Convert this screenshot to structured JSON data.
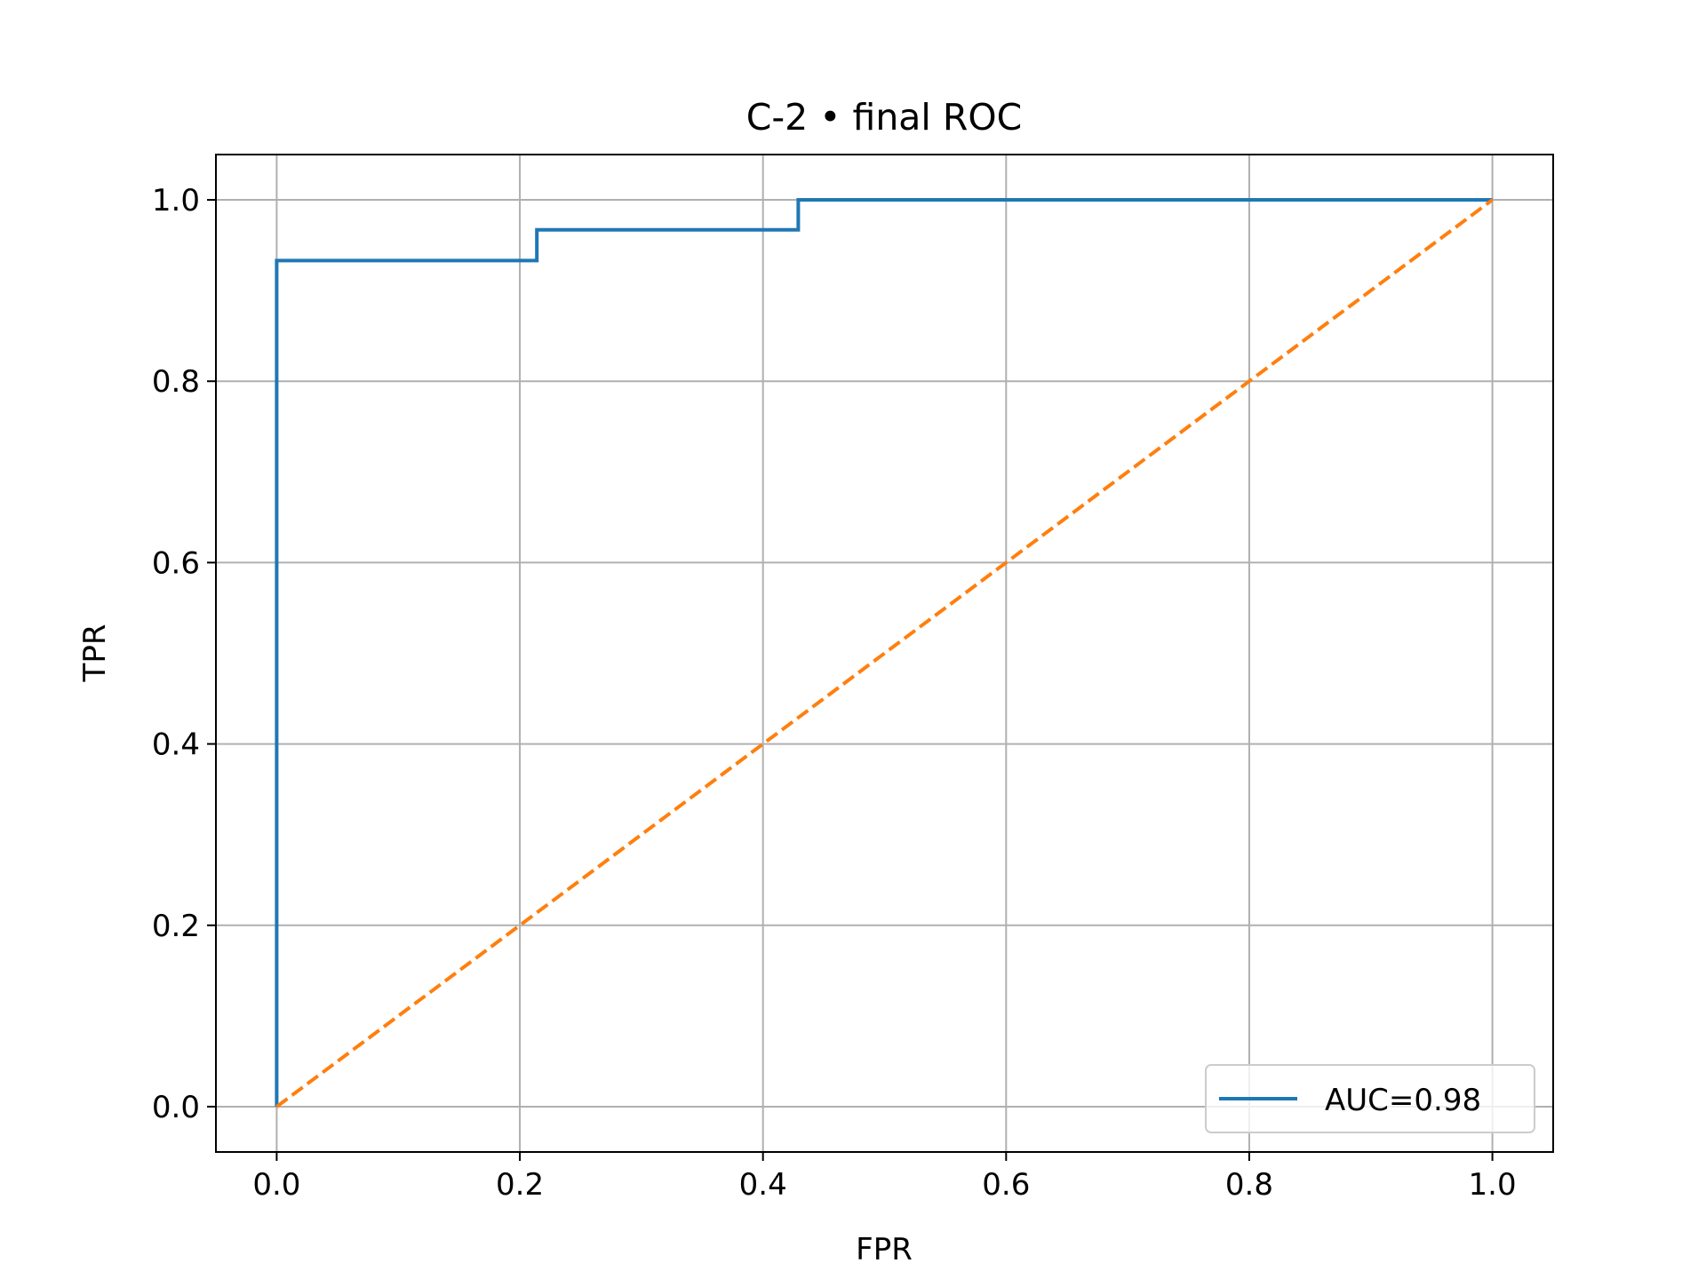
{
  "chart_data": {
    "type": "line",
    "title": "C-2 • final ROC",
    "xlabel": "FPR",
    "ylabel": "TPR",
    "xlim": [
      -0.05,
      1.05
    ],
    "ylim": [
      -0.05,
      1.05
    ],
    "xticks": [
      0.0,
      0.2,
      0.4,
      0.6,
      0.8,
      1.0
    ],
    "yticks": [
      0.0,
      0.2,
      0.4,
      0.6,
      0.8,
      1.0
    ],
    "xtick_labels": [
      "0.0",
      "0.2",
      "0.4",
      "0.6",
      "0.8",
      "1.0"
    ],
    "ytick_labels": [
      "0.0",
      "0.2",
      "0.4",
      "0.6",
      "0.8",
      "1.0"
    ],
    "grid": true,
    "legend_position": "lower-right",
    "series": [
      {
        "name": "AUC=0.98",
        "color": "#1f77b4",
        "style": "solid",
        "x": [
          0.0,
          0.0,
          0.214,
          0.214,
          0.429,
          0.429,
          1.0
        ],
        "y": [
          0.0,
          0.933,
          0.933,
          0.967,
          0.967,
          1.0,
          1.0
        ]
      },
      {
        "color": "#ff7f0e",
        "style": "dashed",
        "x": [
          0.0,
          1.0
        ],
        "y": [
          0.0,
          1.0
        ]
      }
    ]
  }
}
